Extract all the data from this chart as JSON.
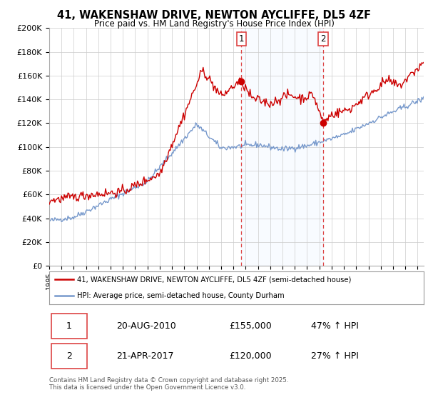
{
  "title": "41, WAKENSHAW DRIVE, NEWTON AYCLIFFE, DL5 4ZF",
  "subtitle": "Price paid vs. HM Land Registry's House Price Index (HPI)",
  "ylim": [
    0,
    200000
  ],
  "yticks": [
    0,
    20000,
    40000,
    60000,
    80000,
    100000,
    120000,
    140000,
    160000,
    180000,
    200000
  ],
  "ytick_labels": [
    "£0",
    "£20K",
    "£40K",
    "£60K",
    "£80K",
    "£100K",
    "£120K",
    "£140K",
    "£160K",
    "£180K",
    "£200K"
  ],
  "sale1_year": 2010.64,
  "sale1_price": 155000,
  "sale1_label": "1",
  "sale2_year": 2017.31,
  "sale2_price": 120000,
  "sale2_label": "2",
  "red_line_color": "#cc0000",
  "blue_line_color": "#7799cc",
  "shade_color": "#ddeeff",
  "vline_color": "#dd4444",
  "legend1": "41, WAKENSHAW DRIVE, NEWTON AYCLIFFE, DL5 4ZF (semi-detached house)",
  "legend2": "HPI: Average price, semi-detached house, County Durham",
  "footnote": "Contains HM Land Registry data © Crown copyright and database right 2025.\nThis data is licensed under the Open Government Licence v3.0.",
  "table": [
    [
      "1",
      "20-AUG-2010",
      "£155,000",
      "47% ↑ HPI"
    ],
    [
      "2",
      "21-APR-2017",
      "£120,000",
      "27% ↑ HPI"
    ]
  ]
}
